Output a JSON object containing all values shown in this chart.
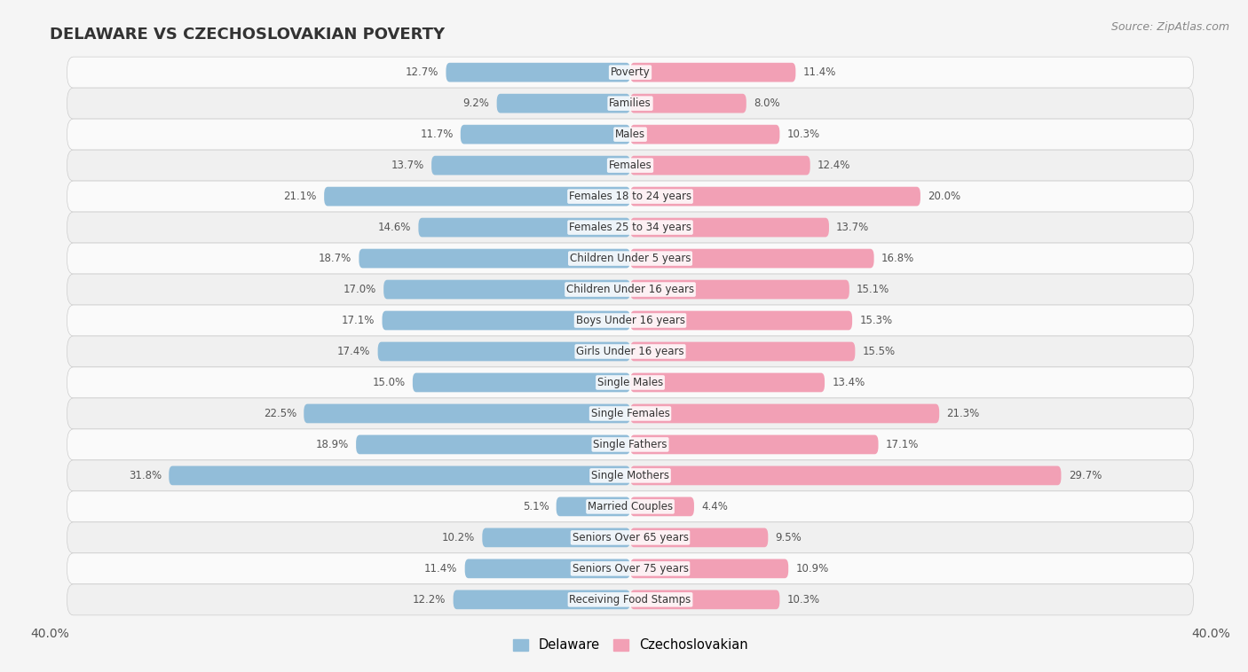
{
  "title": "DELAWARE VS CZECHOSLOVAKIAN POVERTY",
  "source": "Source: ZipAtlas.com",
  "categories": [
    "Poverty",
    "Families",
    "Males",
    "Females",
    "Females 18 to 24 years",
    "Females 25 to 34 years",
    "Children Under 5 years",
    "Children Under 16 years",
    "Boys Under 16 years",
    "Girls Under 16 years",
    "Single Males",
    "Single Females",
    "Single Fathers",
    "Single Mothers",
    "Married Couples",
    "Seniors Over 65 years",
    "Seniors Over 75 years",
    "Receiving Food Stamps"
  ],
  "delaware": [
    12.7,
    9.2,
    11.7,
    13.7,
    21.1,
    14.6,
    18.7,
    17.0,
    17.1,
    17.4,
    15.0,
    22.5,
    18.9,
    31.8,
    5.1,
    10.2,
    11.4,
    12.2
  ],
  "czechoslovakian": [
    11.4,
    8.0,
    10.3,
    12.4,
    20.0,
    13.7,
    16.8,
    15.1,
    15.3,
    15.5,
    13.4,
    21.3,
    17.1,
    29.7,
    4.4,
    9.5,
    10.9,
    10.3
  ],
  "delaware_color": "#92bdd9",
  "czechoslovakian_color": "#f2a0b5",
  "row_color_odd": "#f0f0f0",
  "row_color_even": "#fafafa",
  "xlim": 40.0,
  "bar_height": 0.62,
  "legend_labels": [
    "Delaware",
    "Czechoslovakian"
  ],
  "title_fontsize": 13,
  "source_fontsize": 9,
  "label_fontsize": 8.5,
  "value_fontsize": 8.5
}
